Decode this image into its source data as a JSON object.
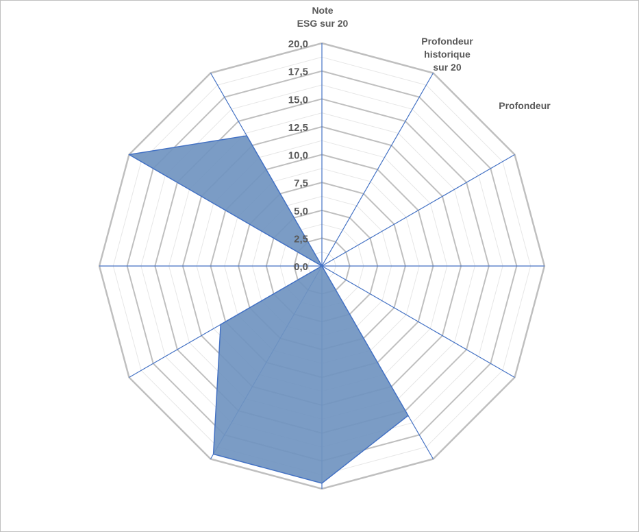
{
  "chart_data": {
    "type": "radar",
    "title": "",
    "categories": [
      "Note\nESG sur 20",
      "Profondeur\nhistorique\nsur 20",
      "Profondeur",
      "",
      "",
      "",
      "",
      "",
      "",
      "",
      "",
      ""
    ],
    "series": [
      {
        "values": [
          0,
          0,
          0,
          0,
          0,
          15.5,
          19.5,
          19.5,
          10.5,
          0,
          20,
          13.5
        ]
      }
    ],
    "r_range": [
      0,
      20
    ],
    "r_ticks": [
      "0,0",
      "2,5",
      "5,0",
      "7,5",
      "10,0",
      "12,5",
      "15,0",
      "17,5",
      "20,0"
    ],
    "grid": true,
    "colors": {
      "fill": "#7094C0",
      "edge": "#4472C4",
      "spoke": "#4472C4",
      "major_grid": "#BFBFBF",
      "minor_grid": "#E6E6E6",
      "label": "#595959"
    }
  }
}
